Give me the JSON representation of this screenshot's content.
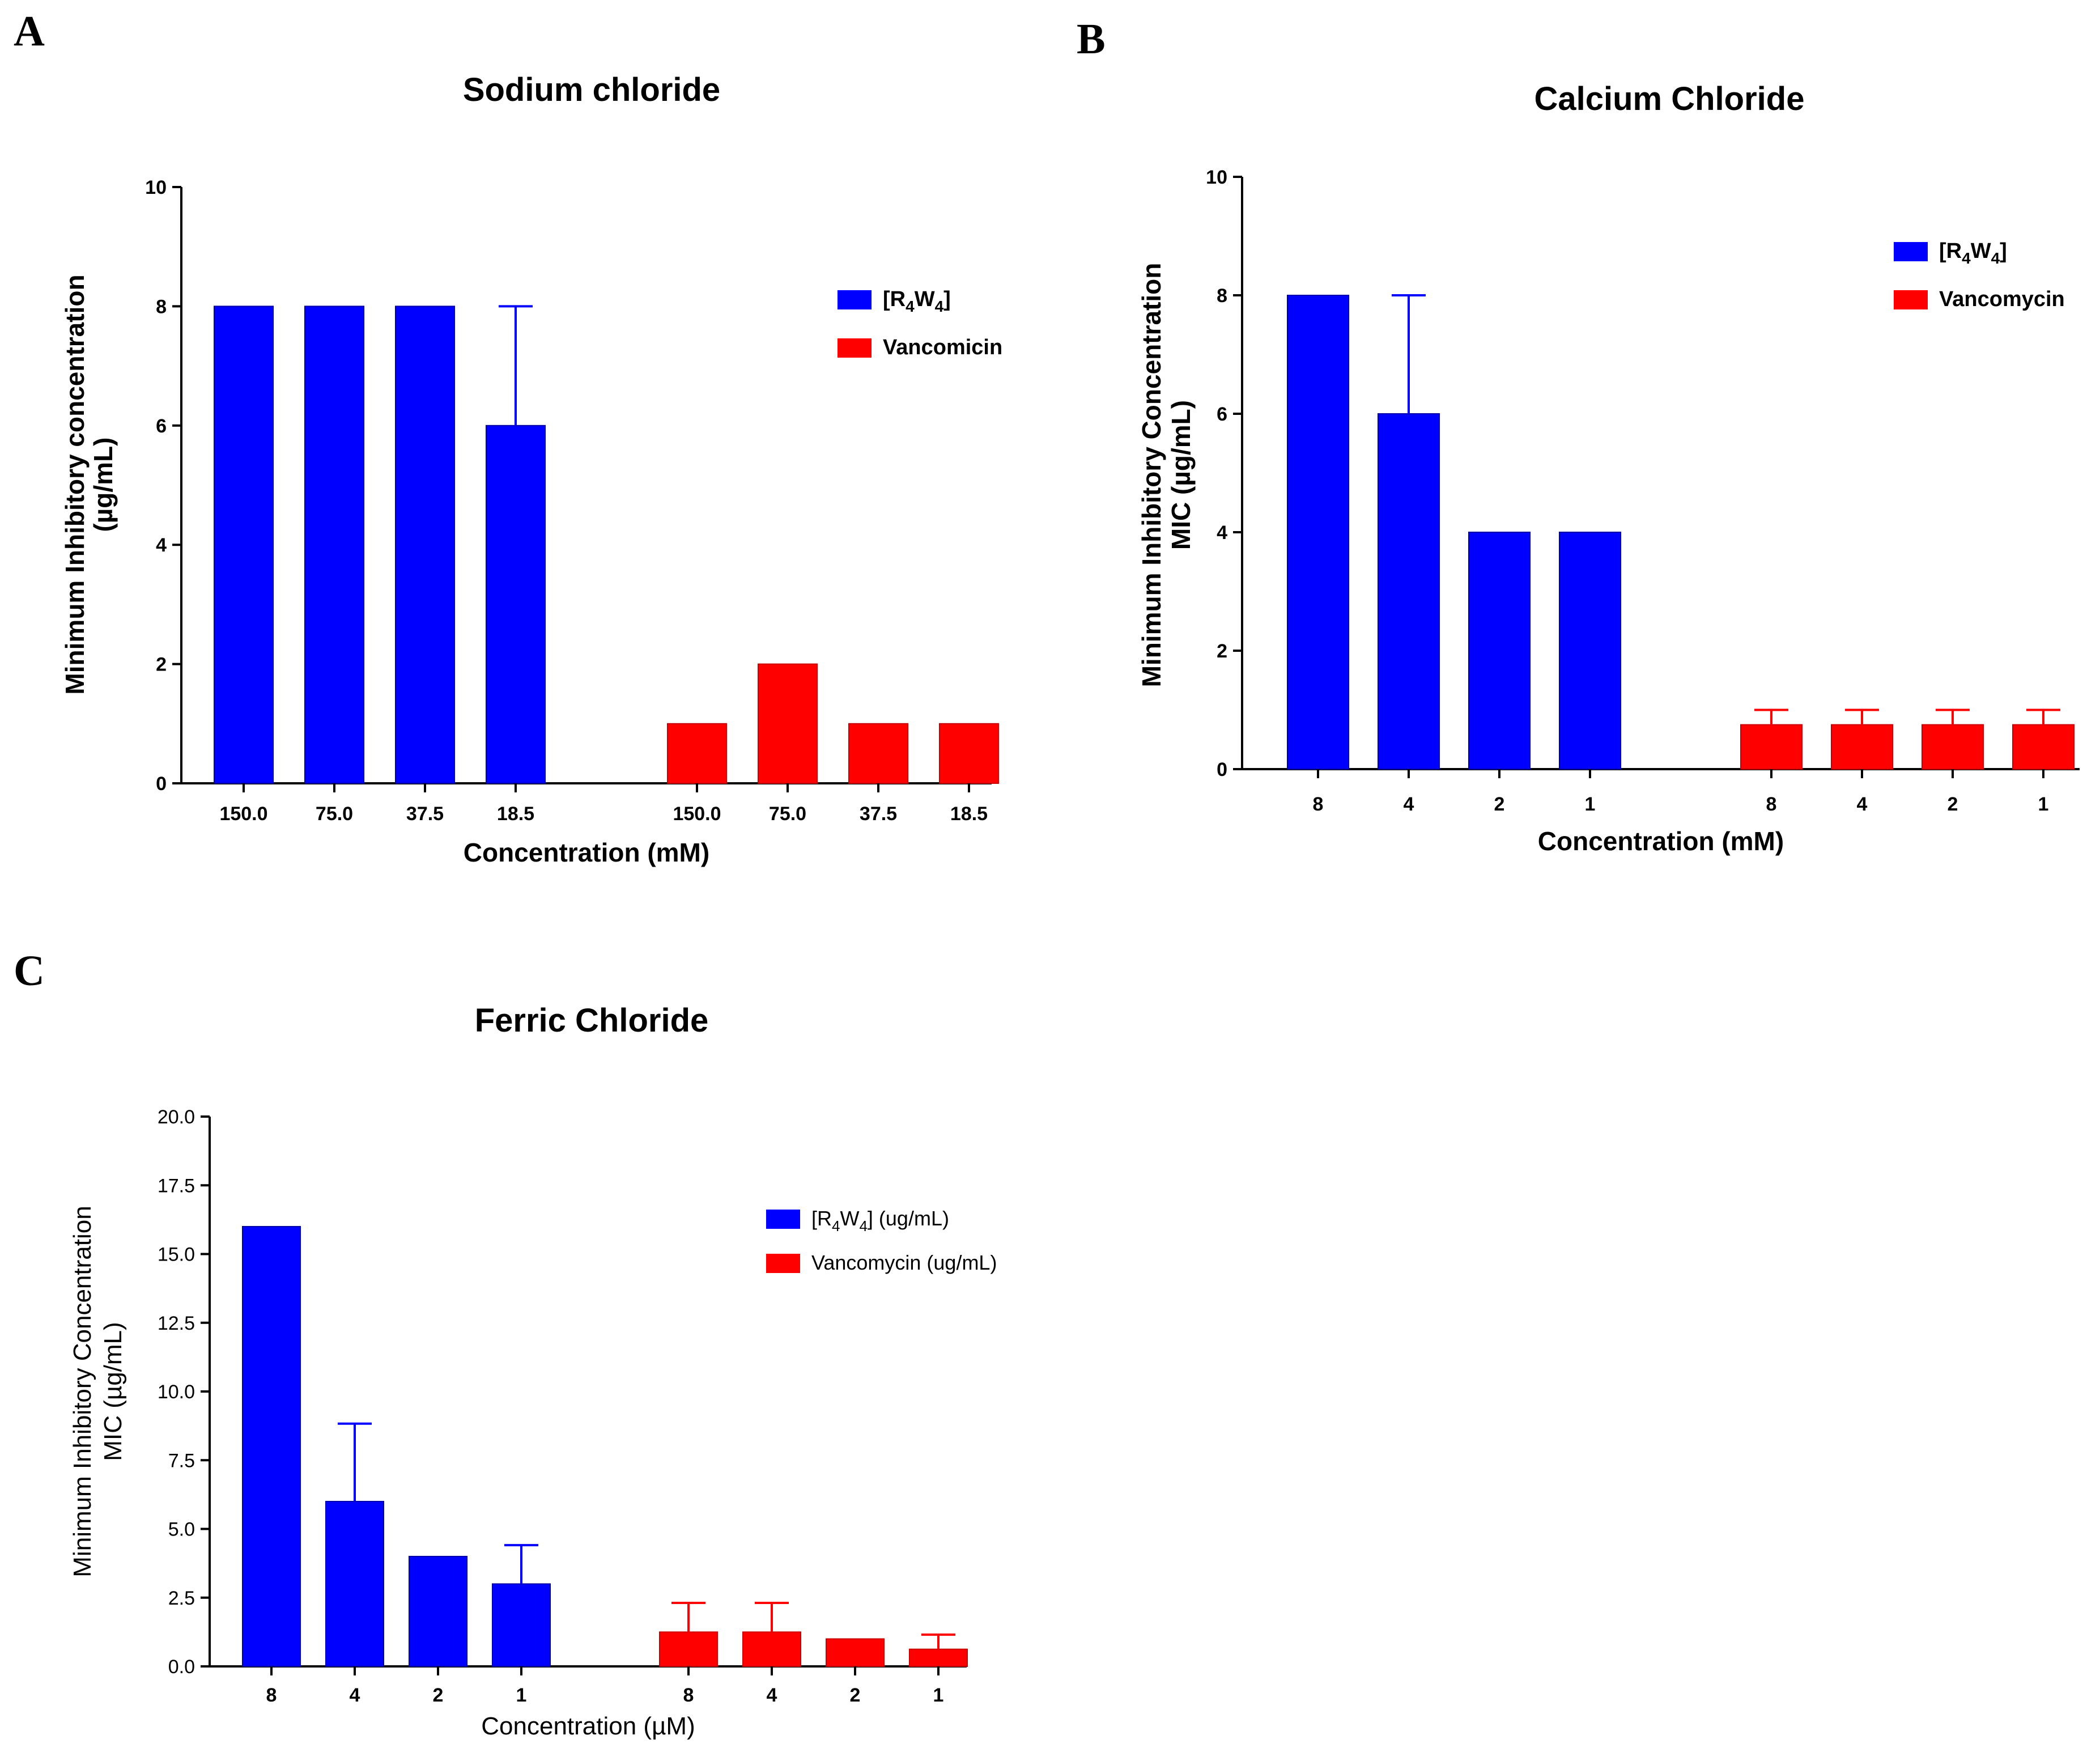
{
  "figure_labels": [
    "A",
    "B",
    "C"
  ],
  "chart_data": [
    {
      "panel": "A",
      "type": "bar",
      "title": "Sodium chloride",
      "xlabel": "Concentration (mM)",
      "ylabel": [
        "Minimum Inhibitory concentration",
        "(µg/mL)"
      ],
      "ylim": [
        0,
        10
      ],
      "yticks": [
        0,
        2,
        4,
        6,
        8,
        10
      ],
      "ytick_labels": [
        "0",
        "2",
        "4",
        "6",
        "8",
        "10"
      ],
      "grid": false,
      "legend_position": "top-right",
      "series": [
        {
          "name_main": "[R",
          "name_sub1": "4",
          "name_mid": "W",
          "name_sub2": "4",
          "name_end": "]",
          "color": "#0000ff",
          "categories": [
            "150.0",
            "75.0",
            "37.5",
            "18.5"
          ],
          "values": [
            8,
            8,
            8,
            6
          ],
          "errors": [
            0,
            0,
            0,
            2
          ]
        },
        {
          "name": "Vancomicin",
          "color": "#ff0000",
          "categories": [
            "150.0",
            "75.0",
            "37.5",
            "18.5"
          ],
          "values": [
            1,
            2,
            1,
            1
          ],
          "errors": [
            0,
            0,
            0,
            0
          ]
        }
      ]
    },
    {
      "panel": "B",
      "type": "bar",
      "title": "Calcium Chloride",
      "xlabel": "Concentration (mM)",
      "ylabel": [
        "Minimum Inhibitory Concentration",
        "MIC (µg/mL)"
      ],
      "ylim": [
        0,
        10
      ],
      "yticks": [
        0,
        2,
        4,
        6,
        8,
        10
      ],
      "ytick_labels": [
        "0",
        "2",
        "4",
        "6",
        "8",
        "10"
      ],
      "grid": false,
      "legend_position": "top-right",
      "series": [
        {
          "name_main": "[R",
          "name_sub1": "4",
          "name_mid": "W",
          "name_sub2": "4",
          "name_end": "]",
          "color": "#0000ff",
          "categories": [
            "8",
            "4",
            "2",
            "1"
          ],
          "values": [
            8,
            6,
            4,
            4
          ],
          "errors": [
            0,
            2,
            0,
            0
          ]
        },
        {
          "name": "Vancomycin",
          "color": "#ff0000",
          "categories": [
            "8",
            "4",
            "2",
            "1"
          ],
          "values": [
            0.75,
            0.75,
            0.75,
            0.75
          ],
          "errors": [
            0.25,
            0.25,
            0.25,
            0.25
          ]
        }
      ]
    },
    {
      "panel": "C",
      "type": "bar",
      "title": "Ferric Chloride",
      "xlabel": "Concentration (µM)",
      "ylabel": [
        "Minimum Inhibitory Concentration",
        "MIC (µg/mL)"
      ],
      "ylim": [
        0,
        20
      ],
      "yticks": [
        0,
        2.5,
        5,
        7.5,
        10,
        12.5,
        15,
        17.5,
        20
      ],
      "ytick_labels": [
        "0.0",
        "2.5",
        "5.0",
        "7.5",
        "10.0",
        "12.5",
        "15.0",
        "17.5",
        "20.0"
      ],
      "grid": false,
      "legend_position": "top-right",
      "series": [
        {
          "name_main": "[R",
          "name_sub1": "4",
          "name_mid": "W",
          "name_sub2": "4",
          "name_end": "] (ug/mL)",
          "color": "#0000ff",
          "categories": [
            "8",
            "4",
            "2",
            "1"
          ],
          "values": [
            16,
            6,
            4,
            3
          ],
          "errors": [
            0,
            2.83,
            0,
            1.41
          ]
        },
        {
          "name": "Vancomycin (ug/mL)",
          "color": "#ff0000",
          "categories": [
            "8",
            "4",
            "2",
            "1"
          ],
          "values": [
            1.25,
            1.25,
            1,
            0.625
          ],
          "errors": [
            1.06,
            1.06,
            0,
            0.53
          ]
        }
      ]
    }
  ]
}
